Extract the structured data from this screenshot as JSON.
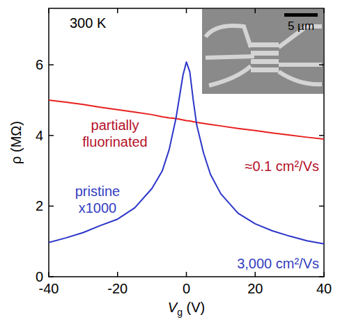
{
  "chart_data": {
    "type": "line",
    "x_label": "Vg (V)",
    "y_label": "ρ (MΩ)",
    "x": [
      -40,
      -35,
      -30,
      -25,
      -20,
      -15,
      -10,
      -7,
      -5,
      -3,
      -2,
      -1,
      0,
      1,
      2,
      3,
      5,
      7,
      10,
      15,
      20,
      25,
      30,
      35,
      40
    ],
    "series": [
      {
        "name": "partially fluorinated",
        "color": "#e8201f",
        "values": [
          5.0,
          4.94,
          4.88,
          4.8,
          4.73,
          4.66,
          4.59,
          4.53,
          4.5,
          4.48,
          4.46,
          4.44,
          4.42,
          4.41,
          4.39,
          4.37,
          4.34,
          4.31,
          4.27,
          4.2,
          4.14,
          4.07,
          4.01,
          3.95,
          3.9
        ]
      },
      {
        "name": "pristine",
        "color": "#2b35c8",
        "values": [
          0.97,
          1.1,
          1.25,
          1.45,
          1.63,
          1.95,
          2.5,
          3.0,
          3.6,
          4.5,
          5.1,
          5.7,
          6.08,
          5.8,
          5.0,
          4.3,
          3.5,
          2.9,
          2.35,
          1.8,
          1.5,
          1.3,
          1.15,
          1.02,
          0.93
        ]
      }
    ],
    "xlim": [
      -40,
      40
    ],
    "ylim": [
      0,
      7.6
    ],
    "xticks": [
      -40,
      -20,
      0,
      20,
      40
    ],
    "yticks": [
      0,
      2,
      4,
      6
    ],
    "grid": false,
    "annotations": [
      {
        "text": "300 K",
        "color": "#000000"
      },
      {
        "text": "partially\nfluorinated",
        "color": "#b5122a"
      },
      {
        "text": "≈0.1 cm²/Vs",
        "color": "#b5122a"
      },
      {
        "text": "pristine\nx1000",
        "color": "#3340c0"
      },
      {
        "text": "3,000 cm²/Vs",
        "color": "#3340c0"
      },
      {
        "text": "5 µm",
        "color": "#000000"
      }
    ]
  }
}
